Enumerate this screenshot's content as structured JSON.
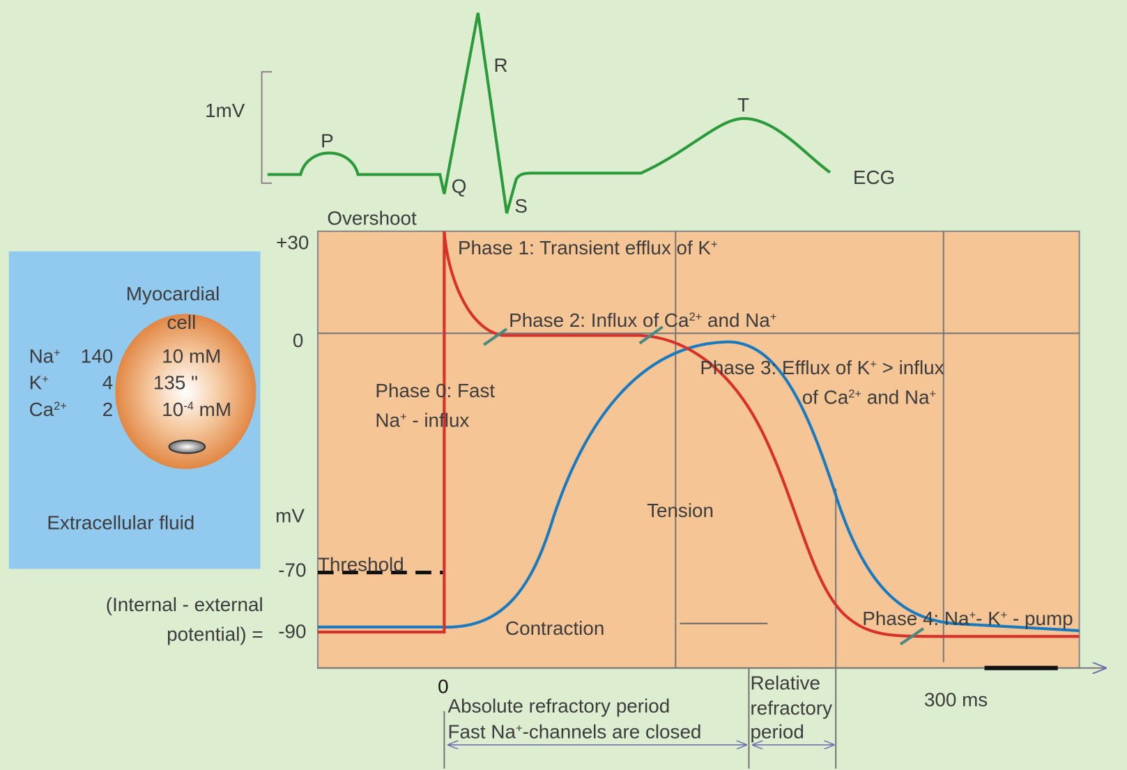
{
  "ecg": {
    "scale": "1mV",
    "p": "P",
    "q": "Q",
    "r": "R",
    "s": "S",
    "t": "T",
    "label": "ECG"
  },
  "axis": {
    "overshoot": "Overshoot",
    "plus30": "+30",
    "zero": "0",
    "unit": "mV",
    "minus70": "-70",
    "threshold": "Threshold",
    "minus90": "-90",
    "potential_1": "(Internal - external",
    "potential_2": "potential) =",
    "time_zero": "0",
    "time_scale": "300 ms"
  },
  "cell": {
    "title_1": "Myocardial",
    "title_2": "cell",
    "rows": [
      {
        "ion": [
          "Na",
          "+"
        ],
        "outside": "140",
        "inside": [
          "10 mM"
        ]
      },
      {
        "ion": [
          "K",
          "+"
        ],
        "outside": "4",
        "inside": [
          "135  \""
        ]
      },
      {
        "ion": [
          "Ca",
          "2+"
        ],
        "outside": "2",
        "inside": [
          "10",
          "-4",
          " mM"
        ]
      }
    ],
    "fluid": "Extracellular fluid"
  },
  "phases": {
    "phase1": [
      "Phase 1: Transient efflux of K",
      "+"
    ],
    "phase2": [
      "Phase 2: Influx of Ca",
      "2+",
      " and Na",
      "+"
    ],
    "phase0_1": [
      "Phase 0: Fast"
    ],
    "phase0_2": [
      "Na",
      "+",
      " - influx"
    ],
    "phase3_1": [
      "Phase 3: Efflux of K",
      "+",
      " > influx"
    ],
    "phase3_2": [
      "of Ca",
      "2+",
      " and Na",
      "+"
    ],
    "phase4": [
      "Phase 4: Na",
      "+",
      "- K",
      "+",
      " - pump"
    ]
  },
  "curves": {
    "tension": "Tension",
    "contraction": "Contraction"
  },
  "refractory": {
    "absolute_1": [
      "Absolute refractory period"
    ],
    "absolute_2": [
      "Fast Na",
      "+",
      "-channels are closed"
    ],
    "relative_1": "Relative",
    "relative_2": "refractory",
    "relative_3": "period"
  }
}
